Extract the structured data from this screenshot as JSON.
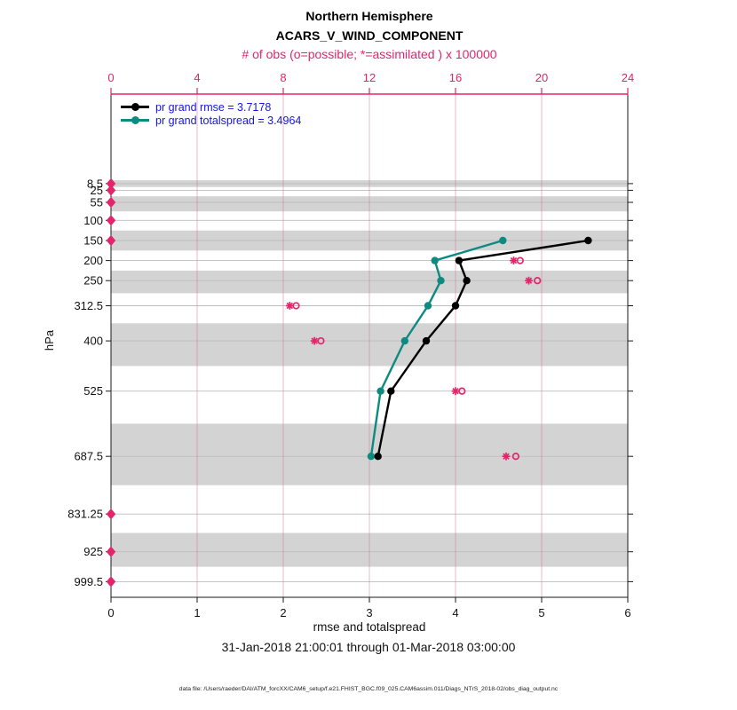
{
  "titles": {
    "line1": "Northern Hemisphere",
    "line2": "ACARS_V_WIND_COMPONENT",
    "obs_axis_label": "# of obs (o=possible; *=assimilated ) x 100000"
  },
  "legend": {
    "items": [
      {
        "label": "pr grand rmse = 3.7178",
        "color": "#000000"
      },
      {
        "label": "pr grand totalspread = 3.4964",
        "color": "#0e8a80"
      }
    ],
    "text_color": "#1414e6"
  },
  "axes": {
    "y_label": "hPa",
    "x_label": "rmse and totalspread",
    "bottom_ticks": [
      "0",
      "1",
      "2",
      "3",
      "4",
      "5",
      "6"
    ],
    "top_ticks": [
      "0",
      "4",
      "8",
      "12",
      "16",
      "20",
      "24"
    ]
  },
  "footer": {
    "date_range": "31-Jan-2018 21:00:01 through 01-Mar-2018 03:00:00",
    "data_file": "data file: /Users/raeder/DAI/ATM_forcXX/CAM6_setup/f.e21.FHIST_BGC.f09_025.CAM6assim.011/Diags_NTrS_2018-02/obs_diag_output.nc"
  },
  "colors": {
    "obs_pink": "#e3256b",
    "rmse_black": "#000000",
    "spread_teal": "#0e8a80",
    "legend_blue": "#1414e6",
    "band_gray": "#d3d3d3",
    "level_line_gray": "#bdbdbd",
    "vgrid_pink": "#d46a92"
  },
  "chart_data": {
    "type": "line",
    "title": "Northern Hemisphere",
    "subtitle": "ACARS_V_WIND_COMPONENT",
    "xlabel": "rmse and totalspread",
    "x2label": "# of obs (o=possible; *=assimilated ) x 100000",
    "ylabel": "hPa",
    "xlim": [
      0,
      6
    ],
    "x2lim": [
      0,
      24
    ],
    "grid": "horizontal level lines + vertical lines at top-axis ticks 4,8,12,16,20",
    "legend_position": "top-left inside plot",
    "y_levels_hpa": [
      8.5,
      25,
      55,
      100,
      150,
      200,
      250,
      312.5,
      400,
      525,
      687.5,
      831.25,
      925,
      999.5
    ],
    "y_level_labels": [
      "8.5",
      "25",
      "55",
      "100",
      "150",
      "200",
      "250",
      "312.5",
      "400",
      "525",
      "687.5",
      "831.25",
      "925",
      "999.5"
    ],
    "shaded_band_levels": [
      8.5,
      55,
      150,
      250,
      400,
      687.5,
      925
    ],
    "series": [
      {
        "name": "pr grand rmse = 3.7178",
        "grand_value": 3.7178,
        "color": "#000000",
        "levels": [
          150,
          200,
          250,
          312.5,
          400,
          525,
          687.5
        ],
        "values": [
          5.54,
          4.04,
          4.13,
          4.0,
          3.66,
          3.25,
          3.1
        ]
      },
      {
        "name": "pr grand totalspread = 3.4964",
        "grand_value": 3.4964,
        "color": "#0e8a80",
        "levels": [
          150,
          200,
          250,
          312.5,
          400,
          525,
          687.5
        ],
        "values": [
          4.55,
          3.76,
          3.83,
          3.68,
          3.41,
          3.13,
          3.02
        ]
      }
    ],
    "obs_counts_x100000": {
      "note": "plotted against top axis; * = assimilated, o = possible; levels with 0 drawn as pink diamond at 0",
      "levels": [
        8.5,
        25,
        55,
        100,
        150,
        200,
        250,
        312.5,
        400,
        525,
        687.5,
        831.25,
        925,
        999.5
      ],
      "assimilated_star": [
        0,
        0,
        0,
        0,
        0,
        18.7,
        19.4,
        8.3,
        9.45,
        16.0,
        18.35,
        0,
        0,
        0
      ],
      "possible_circle": [
        0,
        0,
        0,
        0,
        0,
        19.0,
        19.8,
        8.6,
        9.75,
        16.3,
        18.8,
        0,
        0,
        0
      ]
    }
  }
}
